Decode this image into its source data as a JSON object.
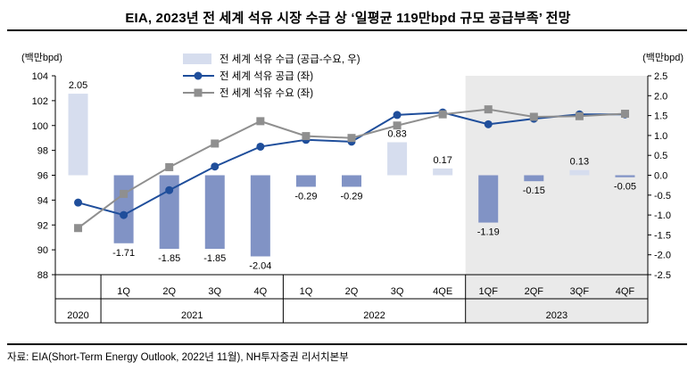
{
  "title": "EIA, 2023년 전 세계 석유 시장 수급 상 ‘일평균 119만bpd 규모 공급부족’ 전망",
  "source": "자료: EIA(Short-Term Energy Outlook, 2022년 11월), NH투자증권 리서치본부",
  "chart_data": {
    "type": "combo-bar-line",
    "left_axis": {
      "unit": "(백만bpd)",
      "min": 88,
      "max": 104,
      "step": 2
    },
    "right_axis": {
      "unit": "(백만bpd)",
      "min": -2.5,
      "max": 2.5,
      "step": 0.5
    },
    "quarter_labels": [
      "",
      "1Q",
      "2Q",
      "3Q",
      "4Q",
      "1Q",
      "2Q",
      "3Q",
      "4QE",
      "1QF",
      "2QF",
      "3QF",
      "4QF"
    ],
    "year_groups": [
      {
        "label": "2020",
        "span": 1,
        "shaded": false
      },
      {
        "label": "2021",
        "span": 4,
        "shaded": false
      },
      {
        "label": "2022",
        "span": 4,
        "shaded": false
      },
      {
        "label": "2023",
        "span": 4,
        "shaded": true
      }
    ],
    "shaded_region_color": "#eaeaea",
    "series": [
      {
        "name": "전 세계 석유 수급 (공급-수요, 우)",
        "type": "bar",
        "axis": "right",
        "values": [
          2.05,
          -1.71,
          -1.85,
          -1.85,
          -2.04,
          -0.29,
          -0.29,
          0.83,
          0.17,
          -1.19,
          -0.15,
          0.13,
          -0.05
        ],
        "labels": [
          "2.05",
          "-1.71",
          "-1.85",
          "-1.85",
          "-2.04",
          "-0.29",
          "-0.29",
          "0.83",
          "0.17",
          "-1.19",
          "-0.15",
          "0.13",
          "-0.05"
        ],
        "color_positive": "#d6ddee",
        "color_negative": "#8193c5"
      },
      {
        "name": "전 세계 석유 공급 (좌)",
        "type": "line",
        "axis": "left",
        "marker": "circle",
        "color": "#1f4e9b",
        "values": [
          93.8,
          92.8,
          94.8,
          96.7,
          98.3,
          98.85,
          98.7,
          100.85,
          101.05,
          100.1,
          100.55,
          100.9,
          100.9
        ]
      },
      {
        "name": "전 세계 석유 수요 (좌)",
        "type": "line",
        "axis": "left",
        "marker": "square",
        "color": "#8f8f8f",
        "values": [
          91.75,
          94.5,
          96.65,
          98.55,
          100.35,
          99.15,
          99.0,
          100.0,
          100.9,
          101.3,
          100.7,
          100.75,
          100.95
        ]
      }
    ]
  }
}
